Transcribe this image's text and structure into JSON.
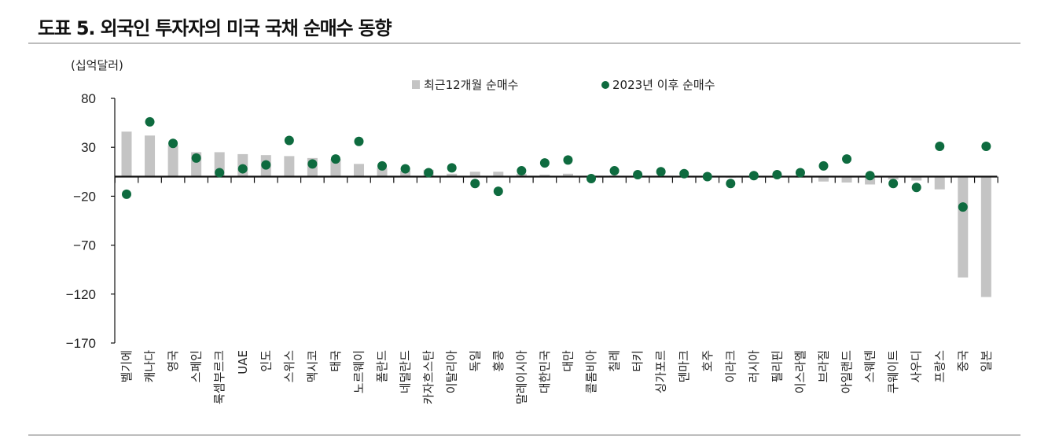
{
  "title": "도표 5. 외국인 투자자의 미국 국채 순매수 동향",
  "colors": {
    "bar": "#c4c4c4",
    "dot": "#0e6b3f",
    "axis": "#111111",
    "rule": "#bdbdbd"
  },
  "chart_data": {
    "type": "bar",
    "unit": "(십억달러)",
    "ylim": [
      -170,
      80
    ],
    "yticks": [
      80,
      30,
      -20,
      -70,
      -120,
      -170
    ],
    "ytick_labels": [
      "80",
      "30",
      "−20",
      "−70",
      "−120",
      "−170"
    ],
    "legend_position": "top",
    "categories": [
      "벨기에",
      "캐나다",
      "영국",
      "스페인",
      "룩셈부르크",
      "UAE",
      "인도",
      "스위스",
      "멕시코",
      "태국",
      "노르웨이",
      "폴란드",
      "네덜란드",
      "카자흐스탄",
      "이탈리아",
      "독일",
      "홍콩",
      "말레이시아",
      "대한민국",
      "대만",
      "콜롬비아",
      "칠레",
      "터키",
      "싱가포르",
      "덴마크",
      "호주",
      "이라크",
      "러시아",
      "필리핀",
      "이스라엘",
      "브라질",
      "아일랜드",
      "스웨덴",
      "쿠웨이트",
      "사우디",
      "프랑스",
      "중국",
      "일본"
    ],
    "series": [
      {
        "name": "최근12개월 순매수",
        "kind": "bar",
        "values": [
          46,
          42,
          32,
          25,
          25,
          23,
          22,
          21,
          19,
          18,
          13,
          9,
          6,
          7,
          3,
          5,
          5,
          3,
          2,
          3,
          1,
          1,
          0,
          0,
          0,
          0,
          -1,
          -1,
          -1,
          -1,
          -5,
          -6,
          -8,
          -3,
          -4,
          -13,
          -103,
          -123
        ]
      },
      {
        "name": "2023년 이후 순매수",
        "kind": "scatter",
        "values": [
          -18,
          56,
          34,
          19,
          4,
          8,
          12,
          37,
          13,
          18,
          36,
          11,
          8,
          4,
          9,
          -7,
          -15,
          6,
          14,
          17,
          -2,
          6,
          2,
          5,
          3,
          0,
          -7,
          1,
          2,
          4,
          11,
          18,
          1,
          -7,
          -11,
          31,
          -31,
          31
        ]
      }
    ]
  }
}
